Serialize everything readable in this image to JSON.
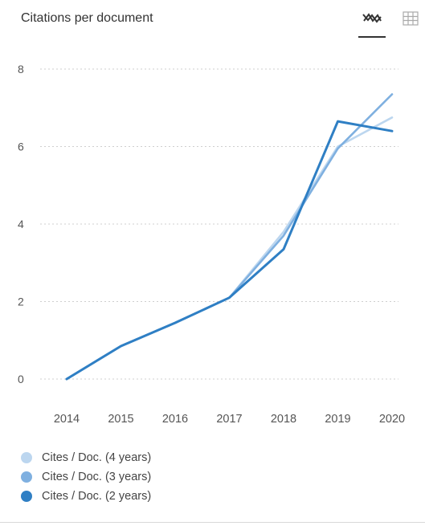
{
  "header": {
    "title": "Citations per document",
    "chart_view_icon": "line-chart-icon",
    "table_view_icon": "table-grid-icon"
  },
  "colors": {
    "grid": "#cfcfcf",
    "tick_text": "#555555",
    "series": [
      "#bcd6ef",
      "#7fb0e0",
      "#2f7fc4"
    ]
  },
  "chart_data": {
    "type": "line",
    "title": "Citations per document",
    "xlabel": "",
    "ylabel": "",
    "x": [
      2014,
      2015,
      2016,
      2017,
      2018,
      2019,
      2020
    ],
    "ylim": [
      0,
      8
    ],
    "yticks": [
      0,
      2,
      4,
      6,
      8
    ],
    "grid": true,
    "legend_position": "bottom-left",
    "series": [
      {
        "name": "Cites / Doc. (4 years)",
        "values": [
          0,
          0.85,
          1.45,
          2.1,
          3.8,
          6.0,
          6.75
        ]
      },
      {
        "name": "Cites / Doc. (3 years)",
        "values": [
          0,
          0.85,
          1.45,
          2.1,
          3.7,
          5.95,
          7.35
        ]
      },
      {
        "name": "Cites / Doc. (2 years)",
        "values": [
          0,
          0.85,
          1.45,
          2.1,
          3.35,
          6.65,
          6.4
        ]
      }
    ]
  }
}
